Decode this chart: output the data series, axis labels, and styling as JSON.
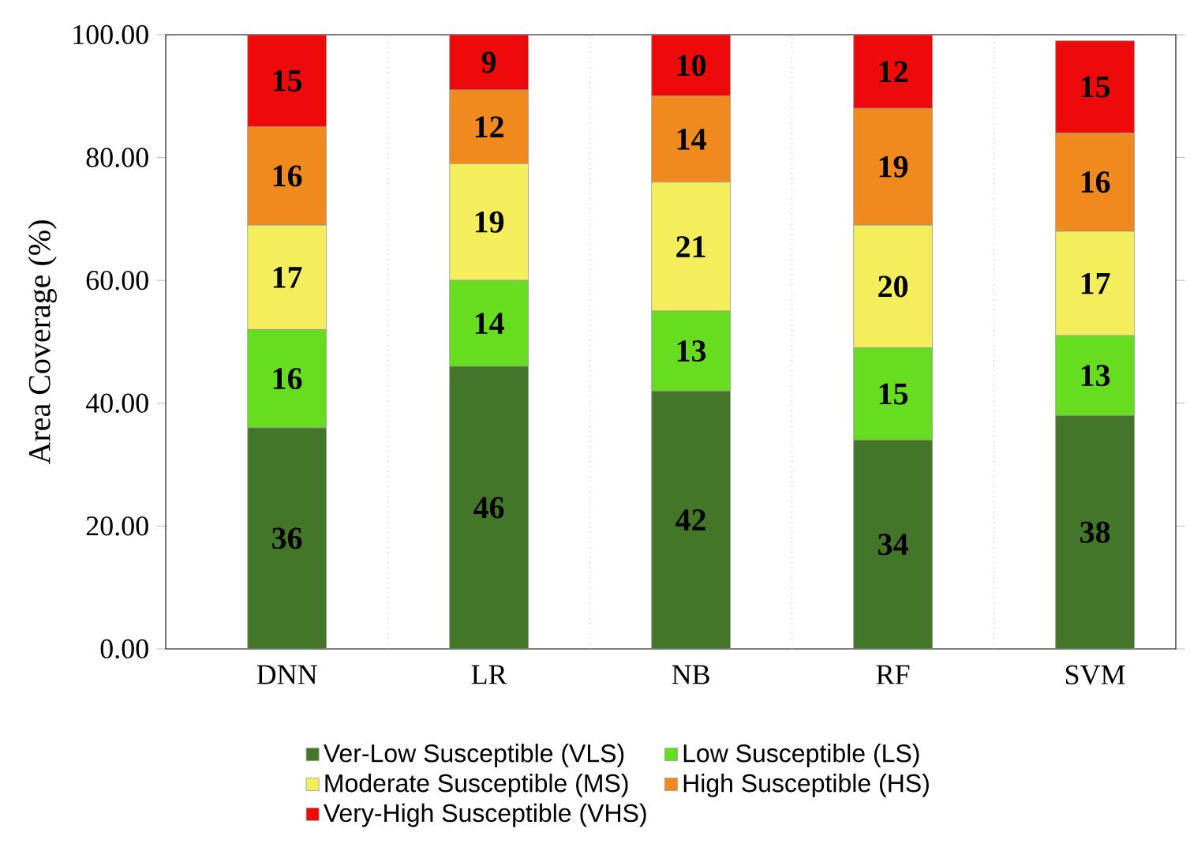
{
  "chart_data": {
    "type": "bar",
    "stacked": true,
    "ylabel": "Area Coverage (%)",
    "categories": [
      "DNN",
      "LR",
      "NB",
      "RF",
      "SVM"
    ],
    "series": [
      {
        "name": "Ver-Low Susceptible (VLS)",
        "color": "#44762a",
        "values": [
          36,
          46,
          42,
          34,
          38
        ]
      },
      {
        "name": "Low Susceptible (LS)",
        "color": "#66dd1e",
        "values": [
          16,
          14,
          13,
          15,
          13
        ]
      },
      {
        "name": "Moderate Susceptible (MS)",
        "color": "#f4ee5c",
        "values": [
          17,
          19,
          21,
          20,
          17
        ]
      },
      {
        "name": "High Susceptible (HS)",
        "color": "#f08a1e",
        "values": [
          16,
          12,
          14,
          19,
          16
        ]
      },
      {
        "name": "Very-High Susceptible (VHS)",
        "color": "#ee0a0a",
        "values": [
          15,
          9,
          10,
          12,
          15
        ]
      }
    ],
    "ylim": [
      0,
      100
    ],
    "yticks": [
      {
        "value": 0,
        "label": "0.00"
      },
      {
        "value": 20,
        "label": "20.00"
      },
      {
        "value": 40,
        "label": "40.00"
      },
      {
        "value": 60,
        "label": "60.00"
      },
      {
        "value": 80,
        "label": "80.00"
      },
      {
        "value": 100,
        "label": "100.00"
      }
    ],
    "data_labels": true,
    "grid": "x",
    "legend": "bottom"
  }
}
